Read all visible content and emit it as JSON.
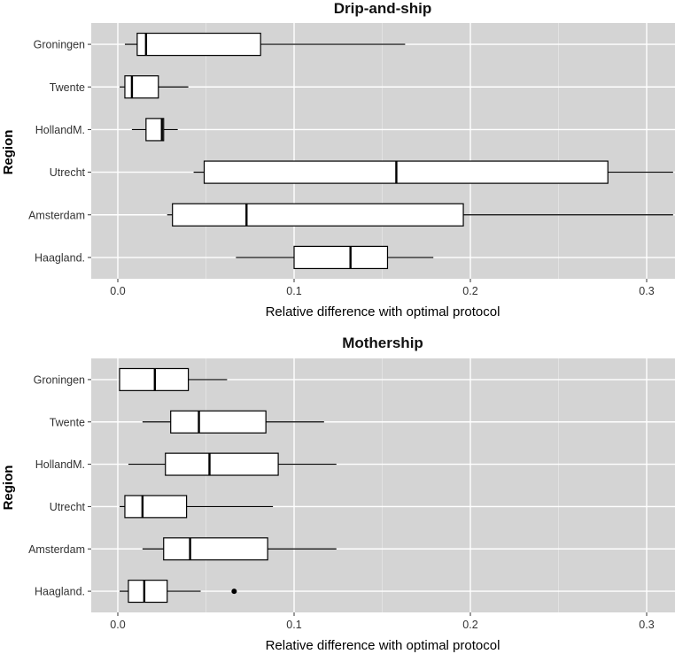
{
  "chart_data": [
    {
      "type": "boxplot",
      "title": "Drip-and-ship",
      "xlabel": "Relative difference with optimal protocol",
      "ylabel": "Region",
      "xlim": [
        -0.013,
        0.315
      ],
      "xticks": [
        0.0,
        0.1,
        0.2,
        0.3
      ],
      "xtick_labels": [
        "0.0",
        "0.1",
        "0.2",
        "0.3"
      ],
      "grid": true,
      "categories": [
        "Groningen",
        "Twente",
        "HollandM.",
        "Utrecht",
        "Amsterdam",
        "Haagland."
      ],
      "boxes": [
        {
          "region": "Groningen",
          "whisker_low": 0.004,
          "q1": 0.011,
          "median": 0.016,
          "q3": 0.081,
          "whisker_high": 0.163,
          "outliers": []
        },
        {
          "region": "Twente",
          "whisker_low": 0.001,
          "q1": 0.004,
          "median": 0.008,
          "q3": 0.023,
          "whisker_high": 0.04,
          "outliers": []
        },
        {
          "region": "HollandM.",
          "whisker_low": 0.008,
          "q1": 0.016,
          "median": 0.025,
          "q3": 0.026,
          "whisker_high": 0.034,
          "outliers": []
        },
        {
          "region": "Utrecht",
          "whisker_low": 0.043,
          "q1": 0.049,
          "median": 0.158,
          "q3": 0.278,
          "whisker_high": 0.315,
          "outliers": []
        },
        {
          "region": "Amsterdam",
          "whisker_low": 0.028,
          "q1": 0.031,
          "median": 0.073,
          "q3": 0.196,
          "whisker_high": 0.315,
          "outliers": []
        },
        {
          "region": "Haagland.",
          "whisker_low": 0.067,
          "q1": 0.1,
          "median": 0.132,
          "q3": 0.153,
          "whisker_high": 0.179,
          "outliers": []
        }
      ]
    },
    {
      "type": "boxplot",
      "title": "Mothership",
      "xlabel": "Relative difference with optimal protocol",
      "ylabel": "Region",
      "xlim": [
        -0.013,
        0.315
      ],
      "xticks": [
        0.0,
        0.1,
        0.2,
        0.3
      ],
      "xtick_labels": [
        "0.0",
        "0.1",
        "0.2",
        "0.3"
      ],
      "grid": true,
      "categories": [
        "Groningen",
        "Twente",
        "HollandM.",
        "Utrecht",
        "Amsterdam",
        "Haagland."
      ],
      "boxes": [
        {
          "region": "Groningen",
          "whisker_low": 0.001,
          "q1": 0.001,
          "median": 0.021,
          "q3": 0.04,
          "whisker_high": 0.062,
          "outliers": []
        },
        {
          "region": "Twente",
          "whisker_low": 0.014,
          "q1": 0.03,
          "median": 0.046,
          "q3": 0.084,
          "whisker_high": 0.117,
          "outliers": []
        },
        {
          "region": "HollandM.",
          "whisker_low": 0.006,
          "q1": 0.027,
          "median": 0.052,
          "q3": 0.091,
          "whisker_high": 0.124,
          "outliers": []
        },
        {
          "region": "Utrecht",
          "whisker_low": 0.001,
          "q1": 0.004,
          "median": 0.014,
          "q3": 0.039,
          "whisker_high": 0.088,
          "outliers": []
        },
        {
          "region": "Amsterdam",
          "whisker_low": 0.014,
          "q1": 0.026,
          "median": 0.041,
          "q3": 0.085,
          "whisker_high": 0.124,
          "outliers": []
        },
        {
          "region": "Haagland.",
          "whisker_low": 0.001,
          "q1": 0.006,
          "median": 0.015,
          "q3": 0.028,
          "whisker_high": 0.047,
          "outliers": [
            0.066
          ]
        }
      ]
    }
  ]
}
